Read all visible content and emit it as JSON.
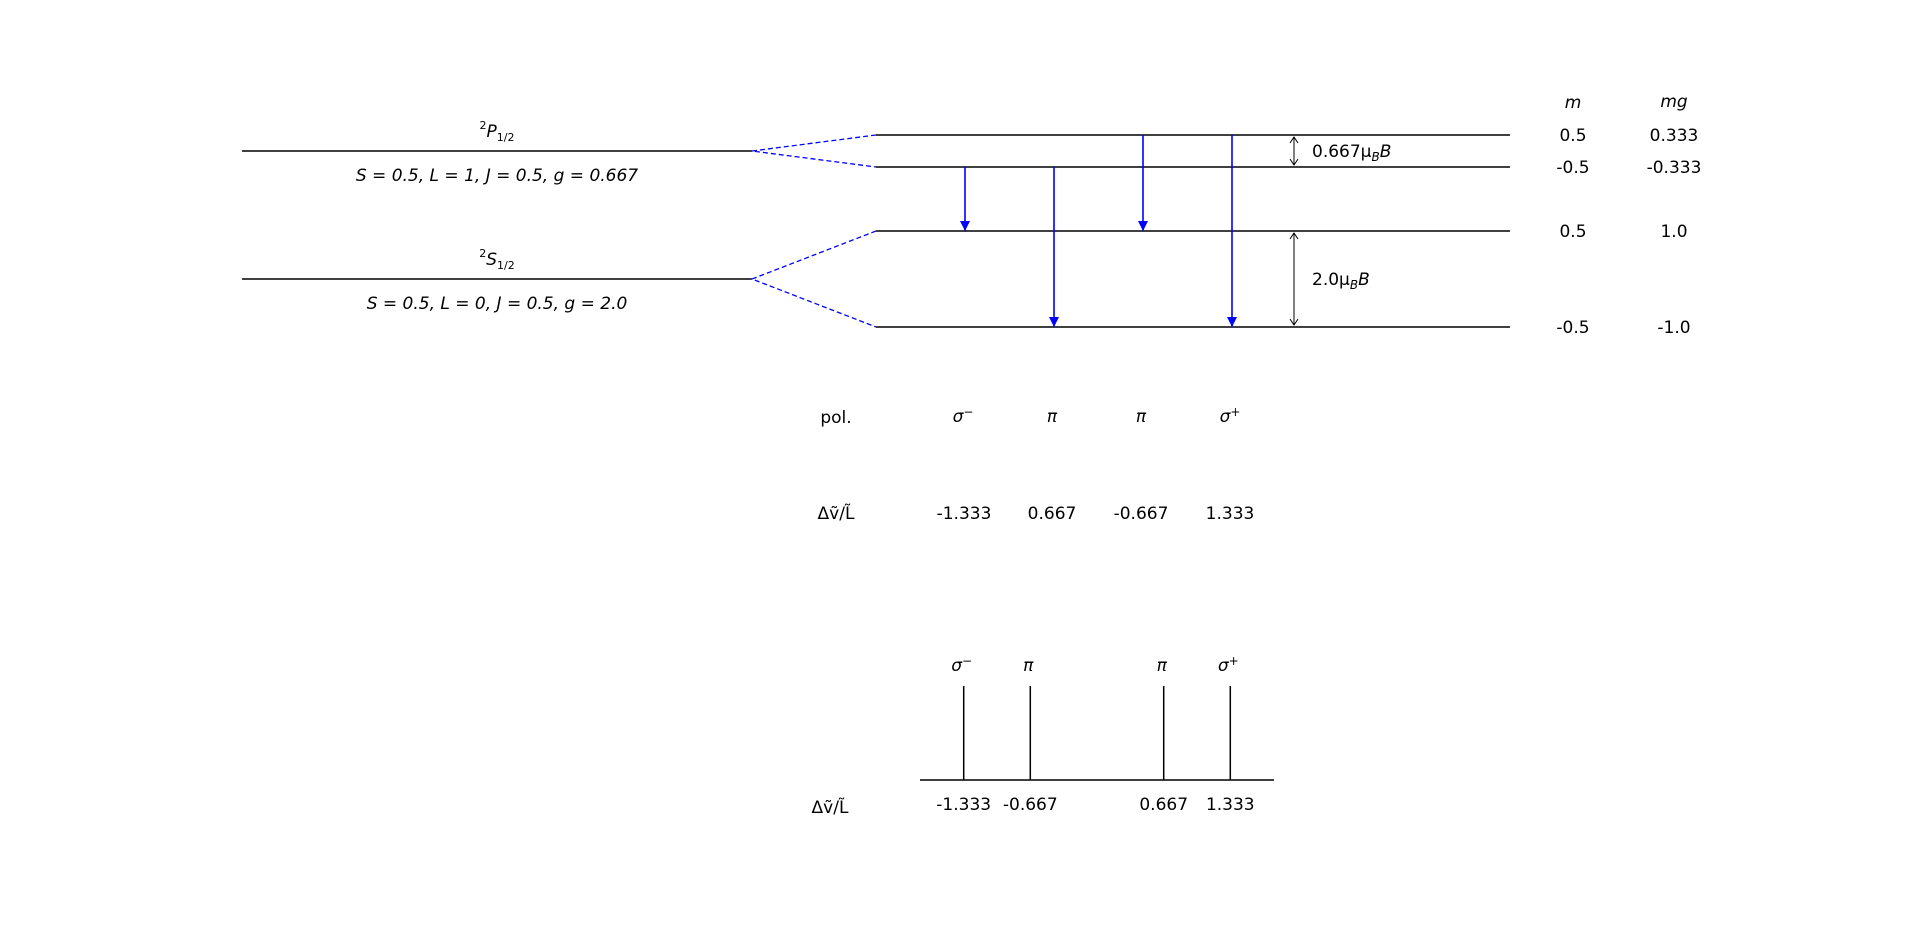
{
  "upper_term": {
    "symbol": {
      "sup": "2",
      "letter": "P",
      "sub": "1/2"
    },
    "params": "S = 0.5, L = 1, J = 0.5, g = 0.667",
    "splitting": "0.667μ",
    "splitting_sub": "B",
    "splitting_tail": "B",
    "sublevels": [
      {
        "m": "0.5",
        "mg": "0.333"
      },
      {
        "m": "-0.5",
        "mg": "-0.333"
      }
    ]
  },
  "lower_term": {
    "symbol": {
      "sup": "2",
      "letter": "S",
      "sub": "1/2"
    },
    "params": "S = 0.5, L = 0, J = 0.5, g = 2.0",
    "splitting": "2.0μ",
    "splitting_sub": "B",
    "splitting_tail": "B",
    "sublevels": [
      {
        "m": "0.5",
        "mg": "1.0"
      },
      {
        "m": "-0.5",
        "mg": "-1.0"
      }
    ]
  },
  "columns": {
    "m": "m",
    "mg": "mg"
  },
  "row_labels": {
    "pol": "pol.",
    "shift": "Δṽ/L̃"
  },
  "transitions": [
    {
      "pol": "σ",
      "pol_sup": "−",
      "shift": "-1.333",
      "from": "-0.5",
      "to": "0.5"
    },
    {
      "pol": "π",
      "pol_sup": "",
      "shift": "0.667",
      "from": "-0.5",
      "to": "-0.5"
    },
    {
      "pol": "π",
      "pol_sup": "",
      "shift": "-0.667",
      "from": "0.5",
      "to": "0.5"
    },
    {
      "pol": "σ",
      "pol_sup": "+",
      "shift": "1.333",
      "from": "0.5",
      "to": "-0.5"
    }
  ],
  "spectrum": {
    "axis_label": "Δṽ/L̃",
    "lines": [
      {
        "pol": "σ",
        "pol_sup": "−",
        "shift": "-1.333",
        "value": -1.333
      },
      {
        "pol": "π",
        "pol_sup": "",
        "shift": "-0.667",
        "value": -0.667
      },
      {
        "pol": "π",
        "pol_sup": "",
        "shift": "0.667",
        "value": 0.667
      },
      {
        "pol": "σ",
        "pol_sup": "+",
        "shift": "1.333",
        "value": 1.333
      }
    ]
  },
  "colors": {
    "transition": "#0000ff",
    "level": "#000000"
  }
}
